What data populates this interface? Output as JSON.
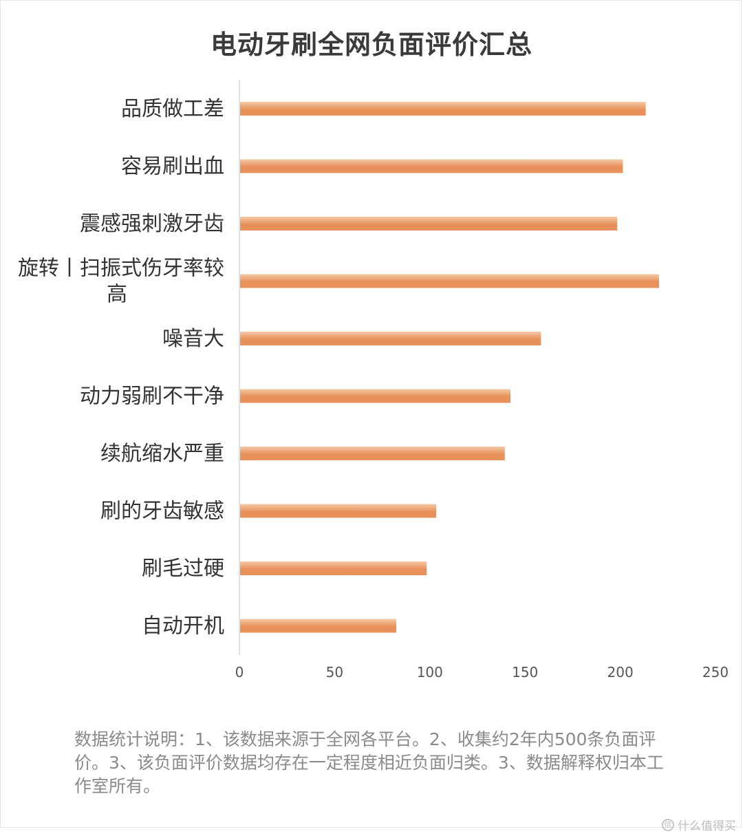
{
  "chart_data": {
    "type": "bar",
    "orientation": "horizontal",
    "title": "电动牙刷全网负面评价汇总",
    "categories": [
      "品质做工差",
      "容易刷出血",
      "震感强刺激牙齿",
      "旋转丨扫振式伤牙率较高",
      "噪音大",
      "动力弱刷不干净",
      "续航缩水严重",
      "刷的牙齿敏感",
      "刷毛过硬",
      "自动开机"
    ],
    "values": [
      213,
      201,
      198,
      220,
      158,
      142,
      139,
      103,
      98,
      82
    ],
    "xlim": [
      0,
      250
    ],
    "xticks": [
      "0",
      "50",
      "100",
      "150",
      "200",
      "250"
    ],
    "xlabel": "",
    "ylabel": "",
    "grid": false,
    "bar_color": "#e8915a",
    "bar_color_light": "#f5c9a6"
  },
  "note": "数据统计说明：1、该数据来源于全网各平台。2、收集约2年内500条负面评价。3、该负面评价数据均存在一定程度相近负面归类。3、数据解释权归本工作室所有。",
  "watermark": "什么值得买"
}
